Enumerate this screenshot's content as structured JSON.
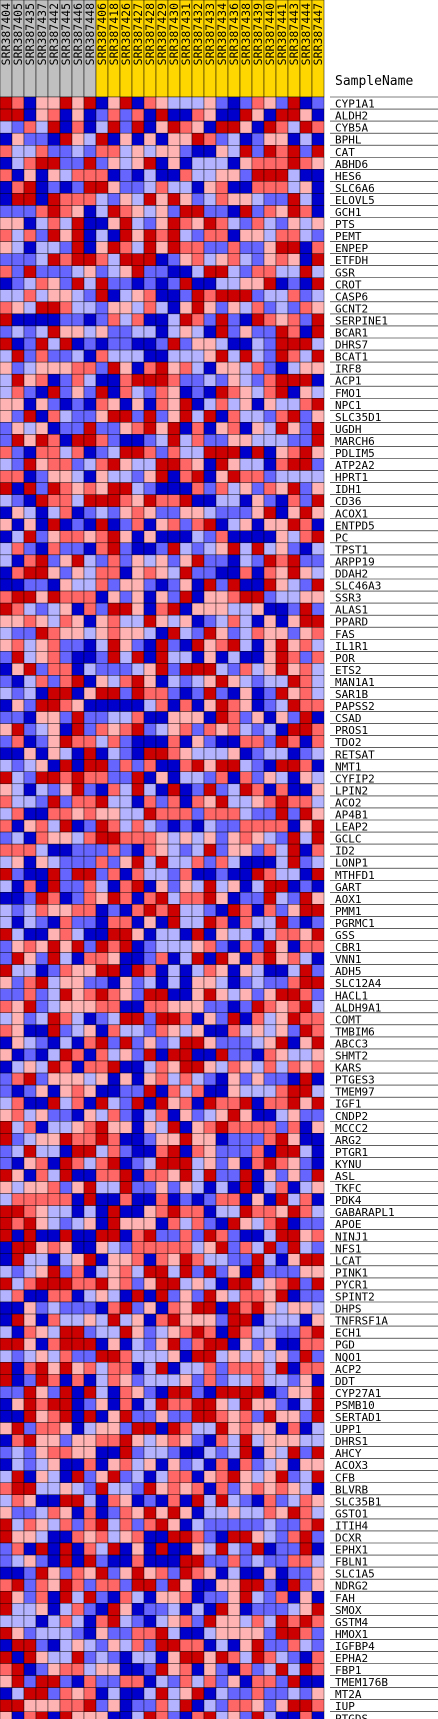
{
  "header": {
    "sample_name_label": "SampleName"
  },
  "palette": {
    "high": "#cc0000",
    "mid_high": "#ff6666",
    "low_high": "#ffb3b3",
    "low_low": "#b3b3ff",
    "mid_low": "#6666ff",
    "low": "#0000cc",
    "grid": "#000000",
    "band_gray": "#c0c0c0",
    "band_gold": "#ffd700"
  },
  "chart_data": {
    "type": "heatmap",
    "title": "",
    "samples": [
      {
        "id": "SRR387404",
        "group": "gray"
      },
      {
        "id": "SRR387405",
        "group": "gray"
      },
      {
        "id": "SRR387435",
        "group": "gray"
      },
      {
        "id": "SRR387437",
        "group": "gray"
      },
      {
        "id": "SRR387442",
        "group": "gray"
      },
      {
        "id": "SRR387445",
        "group": "gray"
      },
      {
        "id": "SRR387446",
        "group": "gray"
      },
      {
        "id": "SRR387448",
        "group": "gray"
      },
      {
        "id": "SRR387406",
        "group": "gold"
      },
      {
        "id": "SRR387418",
        "group": "gold"
      },
      {
        "id": "SRR387426",
        "group": "gold"
      },
      {
        "id": "SRR387427",
        "group": "gold"
      },
      {
        "id": "SRR387428",
        "group": "gold"
      },
      {
        "id": "SRR387429",
        "group": "gold"
      },
      {
        "id": "SRR387430",
        "group": "gold"
      },
      {
        "id": "SRR387431",
        "group": "gold"
      },
      {
        "id": "SRR387432",
        "group": "gold"
      },
      {
        "id": "SRR387433",
        "group": "gold"
      },
      {
        "id": "SRR387434",
        "group": "gold"
      },
      {
        "id": "SRR387436",
        "group": "gold"
      },
      {
        "id": "SRR387438",
        "group": "gold"
      },
      {
        "id": "SRR387439",
        "group": "gold"
      },
      {
        "id": "SRR387440",
        "group": "gold"
      },
      {
        "id": "SRR387441",
        "group": "gold"
      },
      {
        "id": "SRR387443",
        "group": "gold"
      },
      {
        "id": "SRR387444",
        "group": "gold"
      },
      {
        "id": "SRR387447",
        "group": "gold"
      }
    ],
    "genes": [
      "CYP1A1",
      "ALDH2",
      "CYB5A",
      "BPHL",
      "CAT",
      "ABHD6",
      "HES6",
      "SLC6A6",
      "ELOVL5",
      "GCH1",
      "PTS",
      "PEMT",
      "ENPEP",
      "ETFDH",
      "GSR",
      "CROT",
      "CASP6",
      "GCNT2",
      "SERPINE1",
      "BCAR1",
      "DHRS7",
      "BCAT1",
      "IRF8",
      "ACP1",
      "FMO1",
      "NPC1",
      "SLC35D1",
      "UGDH",
      "MARCH6",
      "PDLIM5",
      "ATP2A2",
      "HPRT1",
      "IDH1",
      "CD36",
      "ACOX1",
      "ENTPD5",
      "PC",
      "TPST1",
      "ARPP19",
      "DDAH2",
      "SLC46A3",
      "SSR3",
      "ALAS1",
      "PPARD",
      "FAS",
      "IL1R1",
      "POR",
      "ETS2",
      "MAN1A1",
      "SAR1B",
      "PAPSS2",
      "CSAD",
      "PROS1",
      "TDO2",
      "RETSAT",
      "NMT1",
      "CYFIP2",
      "LPIN2",
      "ACO2",
      "AP4B1",
      "LEAP2",
      "GCLC",
      "ID2",
      "LONP1",
      "MTHFD1",
      "GART",
      "AOX1",
      "PMM1",
      "PGRMC1",
      "GSS",
      "CBR1",
      "VNN1",
      "ADH5",
      "SLC12A4",
      "HACL1",
      "ALDH9A1",
      "COMT",
      "TMBIM6",
      "ABCC3",
      "SHMT2",
      "KARS",
      "PTGES3",
      "TMEM97",
      "IGF1",
      "CNDP2",
      "MCCC2",
      "ARG2",
      "PTGR1",
      "KYNU",
      "ASL",
      "TKFC",
      "PDK4",
      "GABARAPL1",
      "APOE",
      "NINJ1",
      "NFS1",
      "LCAT",
      "PINK1",
      "PYCR1",
      "SPINT2",
      "DHPS",
      "TNFRSF1A",
      "ECH1",
      "PGD",
      "NQO1",
      "ACP2",
      "DDT",
      "CYP27A1",
      "PSMB10",
      "SERTAD1",
      "UPP1",
      "DHRS1",
      "AHCY",
      "ACOX3",
      "CFB",
      "BLVRB",
      "SLC35B1",
      "GSTO1",
      "ITIH4",
      "DCXR",
      "EPHX1",
      "FBLN1",
      "SLC1A5",
      "NDRG2",
      "FAH",
      "SMOX",
      "GSTM4",
      "HMOX1",
      "IGFBP4",
      "EPHA2",
      "FBP1",
      "TMEM176B",
      "MT2A",
      "IUP",
      "PTGDS"
    ],
    "color_scale": "blue-white-red (low to high expression)"
  }
}
